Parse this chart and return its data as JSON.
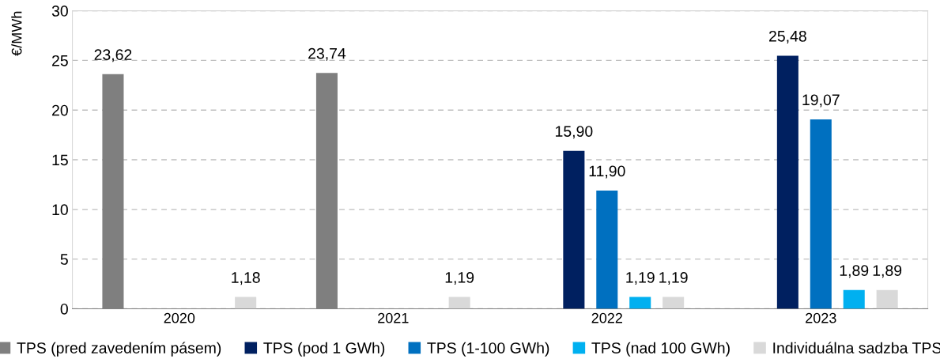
{
  "chart_data": {
    "type": "bar",
    "ylabel": "€/MWh",
    "categories": [
      "2020",
      "2021",
      "2022",
      "2023"
    ],
    "ylim": [
      0,
      30
    ],
    "yticks": [
      0,
      5,
      10,
      15,
      20,
      25,
      30
    ],
    "grid": "y",
    "legend": "bottom",
    "series": [
      {
        "name": "TPS (pred zavedením pásem)",
        "color": "#7f7f7f",
        "values": [
          23.62,
          23.74,
          null,
          null
        ],
        "value_labels": [
          "23,62",
          "23,74",
          null,
          null
        ]
      },
      {
        "name": "TPS (pod 1 GWh)",
        "color": "#002060",
        "values": [
          null,
          null,
          15.9,
          25.48
        ],
        "value_labels": [
          null,
          null,
          "15,90",
          "25,48"
        ]
      },
      {
        "name": "TPS (1-100 GWh)",
        "color": "#0070c0",
        "values": [
          null,
          null,
          11.9,
          19.07
        ],
        "value_labels": [
          null,
          null,
          "11,90",
          "19,07"
        ]
      },
      {
        "name": "TPS (nad 100 GWh)",
        "color": "#00b0f0",
        "values": [
          null,
          null,
          1.19,
          1.89
        ],
        "value_labels": [
          null,
          null,
          "1,19",
          "1,89"
        ]
      },
      {
        "name": "Individuálna sadzba TPS",
        "color": "#d9d9d9",
        "values": [
          1.18,
          1.19,
          1.19,
          1.89
        ],
        "value_labels": [
          "1,18",
          "1,19",
          "1,19",
          "1,89"
        ]
      }
    ]
  }
}
